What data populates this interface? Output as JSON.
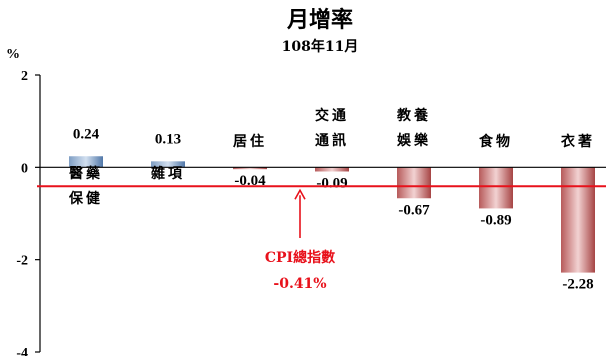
{
  "chart_data": {
    "type": "bar",
    "title": "月增率",
    "subtitle": "108年11月",
    "ylabel": "%",
    "ylim": [
      -4,
      2
    ],
    "yticks": [
      2,
      0,
      -2,
      -4
    ],
    "grid": false,
    "categories": [
      [
        "醫藥",
        "保健"
      ],
      [
        "雜項"
      ],
      [
        "居住"
      ],
      [
        "交通",
        "通訊"
      ],
      [
        "教養",
        "娛樂"
      ],
      [
        "食物"
      ],
      [
        "衣著"
      ]
    ],
    "values": [
      0.24,
      0.13,
      -0.04,
      -0.09,
      -0.67,
      -0.89,
      -2.28
    ],
    "value_labels": [
      "0.24",
      "0.13",
      "-0.04",
      "-0.09",
      "-0.67",
      "-0.89",
      "-2.28"
    ],
    "reference_line": {
      "value": -0.41,
      "label_line1": "CPI總指數",
      "label_line2": "-0.41%",
      "color": "#e8111b"
    },
    "colors": {
      "positive_dark": "#3e6a9c",
      "positive_light": "#c7d7ea",
      "negative_dark": "#a84545",
      "negative_light": "#f0cccc",
      "axis": "#000000"
    }
  }
}
